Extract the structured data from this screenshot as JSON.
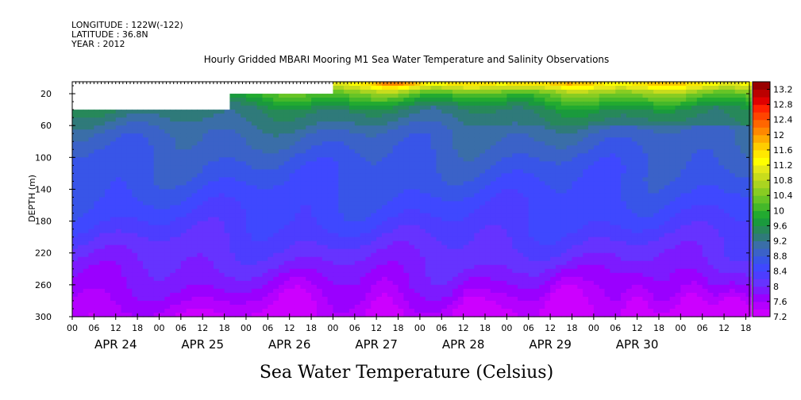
{
  "header": {
    "longitude": "LONGITUDE : 122W(-122)",
    "latitude": "LATITUDE : 36.8N",
    "year": "YEAR : 2012"
  },
  "chart_data": {
    "type": "heatmap",
    "title": "Hourly Gridded MBARI Mooring M1 Sea Water Temperature and Salinity Observations",
    "xlabel": "Sea Water Temperature (Celsius)",
    "ylabel": "DEPTH (m)",
    "x_unit": "hours since 2012-04-23 00:00",
    "xlim": [
      0,
      187
    ],
    "ylim": [
      300,
      0
    ],
    "y_ticks": [
      20,
      60,
      100,
      140,
      180,
      220,
      260,
      300
    ],
    "x_hour_ticks": [
      "00",
      "06",
      "12",
      "18",
      "00",
      "06",
      "12",
      "18",
      "00",
      "06",
      "12",
      "18",
      "00",
      "06",
      "12",
      "18",
      "00",
      "06",
      "12",
      "18",
      "00",
      "06",
      "12",
      "18",
      "00",
      "06",
      "12",
      "18",
      "00",
      "06",
      "12",
      "18"
    ],
    "x_hour_tick_values": [
      24,
      30,
      36,
      42,
      48,
      54,
      60,
      66,
      72,
      78,
      84,
      90,
      96,
      102,
      108,
      114,
      120,
      126,
      132,
      138,
      144,
      150,
      156,
      162,
      168,
      174,
      180,
      186,
      192,
      198,
      204,
      210
    ],
    "x_date_labels": [
      {
        "label": "APR 24",
        "hour": 36
      },
      {
        "label": "APR 25",
        "hour": 60
      },
      {
        "label": "APR 26",
        "hour": 84
      },
      {
        "label": "APR 27",
        "hour": 108
      },
      {
        "label": "APR 28",
        "hour": 132
      },
      {
        "label": "APR 29",
        "hour": 156
      },
      {
        "label": "APR 30",
        "hour": 180
      }
    ],
    "colorbar": {
      "levels": [
        7.2,
        7.4,
        7.6,
        7.8,
        8.0,
        8.2,
        8.4,
        8.6,
        8.8,
        9.0,
        9.2,
        9.4,
        9.6,
        9.8,
        10.0,
        10.2,
        10.4,
        10.6,
        10.8,
        11.0,
        11.2,
        11.4,
        11.6,
        11.8,
        12.0,
        12.2,
        12.4,
        12.6,
        12.8,
        13.0,
        13.2,
        13.4
      ],
      "labels": [
        "7.2",
        "7.6",
        "8",
        "8.4",
        "8.8",
        "9.2",
        "9.6",
        "10",
        "10.4",
        "10.8",
        "11.2",
        "11.6",
        "12",
        "12.4",
        "12.8",
        "13.2"
      ],
      "colors": [
        "#cc00ff",
        "#b400ff",
        "#9a00ff",
        "#7d1aff",
        "#6633ff",
        "#4d3dff",
        "#3f48ff",
        "#3855e8",
        "#3b62c8",
        "#3a6ea8",
        "#2f7a7a",
        "#27885a",
        "#1a9a3d",
        "#22aa30",
        "#44b82a",
        "#66c426",
        "#88cc22",
        "#aad420",
        "#c8dc1c",
        "#e4e818",
        "#ffff00",
        "#ffe800",
        "#ffcc00",
        "#ffaa00",
        "#ff8800",
        "#ff6600",
        "#ff4400",
        "#ff2200",
        "#e00000",
        "#bb0000",
        "#990000"
      ]
    },
    "depth_profile": [
      {
        "depth": 0,
        "temp": 11.6
      },
      {
        "depth": 10,
        "temp": 11.0
      },
      {
        "depth": 20,
        "temp": 10.2
      },
      {
        "depth": 40,
        "temp": 9.4
      },
      {
        "depth": 70,
        "temp": 9.0
      },
      {
        "depth": 100,
        "temp": 8.8
      },
      {
        "depth": 140,
        "temp": 8.6
      },
      {
        "depth": 180,
        "temp": 8.4
      },
      {
        "depth": 220,
        "temp": 8.1
      },
      {
        "depth": 260,
        "temp": 7.8
      },
      {
        "depth": 300,
        "temp": 7.4
      }
    ],
    "data_start_hours": [
      {
        "depth_from": 0,
        "depth_to": 20,
        "start_hour": 72
      },
      {
        "depth_from": 20,
        "depth_to": 40,
        "start_hour": 43
      },
      {
        "depth_from": 40,
        "depth_to": 300,
        "start_hour": 0
      }
    ],
    "surface_warm_events": [
      {
        "hour": 90,
        "temp": 13.2
      },
      {
        "hour": 107,
        "temp": 12.4
      },
      {
        "hour": 125,
        "temp": 12.8
      },
      {
        "hour": 136,
        "temp": 12.4
      },
      {
        "hour": 160,
        "temp": 11.6
      }
    ],
    "deep_cold_events": [
      {
        "hour": 62,
        "temp": 7.4
      },
      {
        "hour": 86,
        "temp": 7.4
      },
      {
        "hour": 110,
        "temp": 7.4
      },
      {
        "hour": 136,
        "temp": 7.2
      },
      {
        "hour": 156,
        "temp": 7.2
      },
      {
        "hour": 172,
        "temp": 7.2
      },
      {
        "hour": 182,
        "temp": 7.2
      }
    ]
  }
}
